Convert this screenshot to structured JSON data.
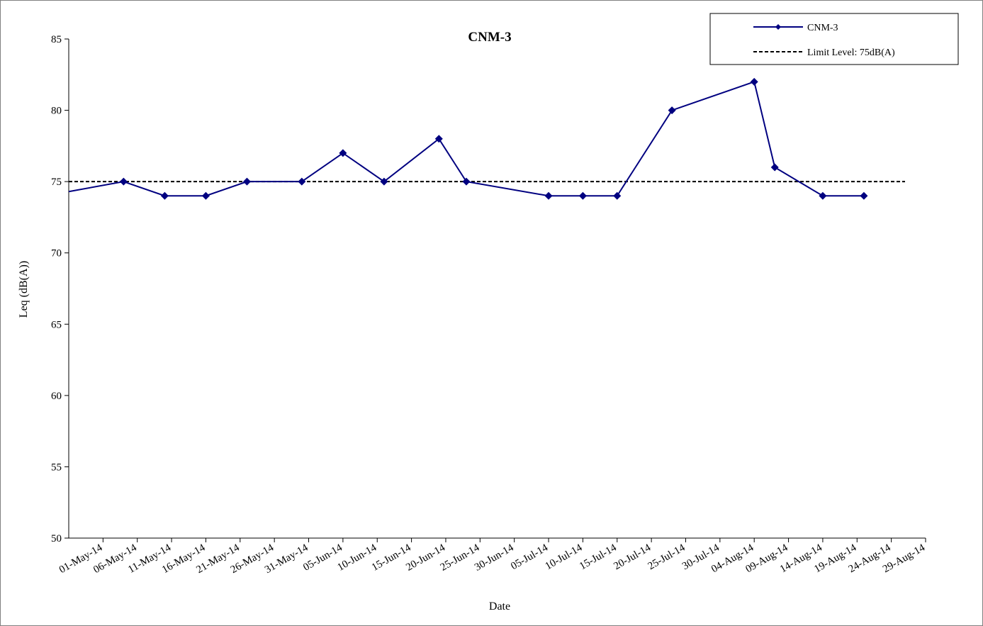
{
  "chart_data": {
    "type": "line",
    "title": "CNM-3",
    "xlabel": "Date",
    "ylabel": "Leq (dB(A))",
    "ylim": [
      50,
      85
    ],
    "yticks": [
      50,
      55,
      60,
      65,
      70,
      75,
      80,
      85
    ],
    "xlim": [
      "2014-05-01",
      "2014-09-03"
    ],
    "xtick_labels": [
      "01-May-14",
      "06-May-14",
      "11-May-14",
      "16-May-14",
      "21-May-14",
      "26-May-14",
      "31-May-14",
      "05-Jun-14",
      "10-Jun-14",
      "15-Jun-14",
      "20-Jun-14",
      "25-Jun-14",
      "30-Jun-14",
      "05-Jul-14",
      "10-Jul-14",
      "15-Jul-14",
      "20-Jul-14",
      "25-Jul-14",
      "30-Jul-14",
      "04-Aug-14",
      "09-Aug-14",
      "14-Aug-14",
      "19-Aug-14",
      "24-Aug-14",
      "29-Aug-14"
    ],
    "series": [
      {
        "name": "CNM-3",
        "color": "#000080",
        "marker": "diamond",
        "points": [
          {
            "x": "2014-05-09",
            "y": 75
          },
          {
            "x": "2014-05-15",
            "y": 74
          },
          {
            "x": "2014-05-21",
            "y": 74
          },
          {
            "x": "2014-05-27",
            "y": 75
          },
          {
            "x": "2014-06-04",
            "y": 75
          },
          {
            "x": "2014-06-10",
            "y": 77
          },
          {
            "x": "2014-06-16",
            "y": 75
          },
          {
            "x": "2014-06-24",
            "y": 78
          },
          {
            "x": "2014-06-28",
            "y": 75
          },
          {
            "x": "2014-07-10",
            "y": 74
          },
          {
            "x": "2014-07-15",
            "y": 74
          },
          {
            "x": "2014-07-20",
            "y": 74
          },
          {
            "x": "2014-07-28",
            "y": 80
          },
          {
            "x": "2014-08-09",
            "y": 82
          },
          {
            "x": "2014-08-12",
            "y": 76
          },
          {
            "x": "2014-08-19",
            "y": 74
          },
          {
            "x": "2014-08-25",
            "y": 74
          }
        ]
      },
      {
        "name": "Limit Level: 75dB(A)",
        "color": "#000000",
        "style": "dashed",
        "points": [
          {
            "x": "2014-05-01",
            "y": 75
          },
          {
            "x": "2014-08-31",
            "y": 75
          }
        ]
      }
    ],
    "legend_position": "top-right",
    "grid": false
  }
}
